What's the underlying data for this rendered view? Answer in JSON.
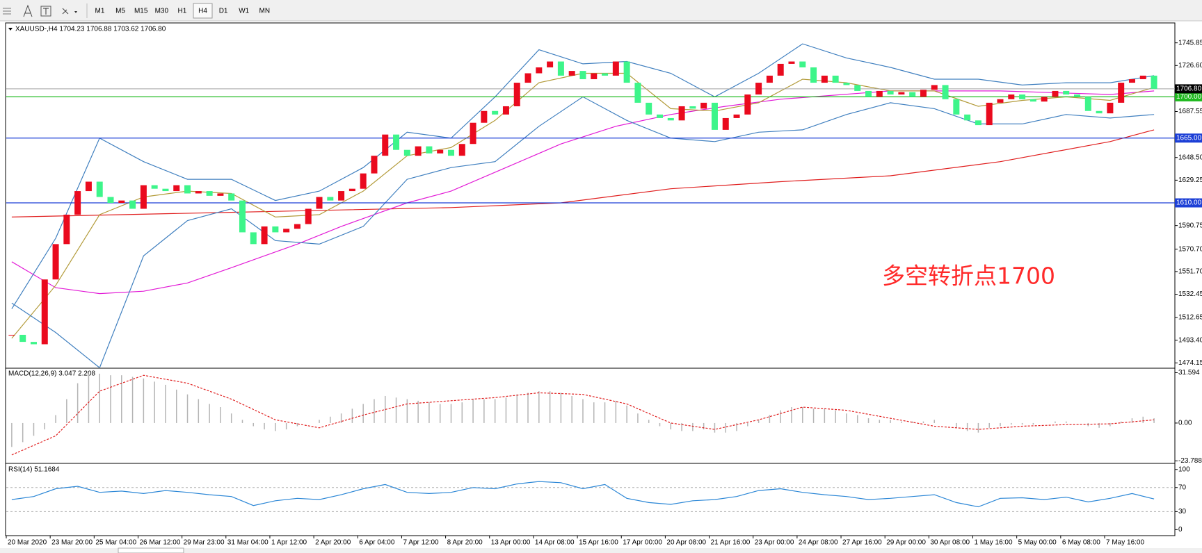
{
  "toolbar": {
    "timeframes": [
      "M1",
      "M5",
      "M15",
      "M30",
      "H1",
      "H4",
      "D1",
      "W1",
      "MN"
    ],
    "active": 5
  },
  "main": {
    "header": "XAUUSD-,H4  1704.23 1706.88 1703.62 1706.80",
    "ylim": [
      1470.25,
      1762.75
    ],
    "yticks": [
      1745.85,
      {
        "value": 1726.6,
        "label": "1726.60"
      },
      1687.55,
      {
        "value": 1648.5,
        "label": "1648.50"
      },
      1629.25,
      1590.75,
      {
        "value": 1570.7,
        "label": "1570.70"
      },
      {
        "value": 1551.7,
        "label": "1551.70"
      },
      1532.45,
      1512.65,
      {
        "value": 1493.4,
        "label": "1493.40"
      },
      1474.15
    ],
    "levels": [
      {
        "value": 1700,
        "label": "1700.00",
        "color": "#1fb91f"
      },
      {
        "value": 1665,
        "label": "1665.00",
        "color": "#1c3fd6"
      },
      {
        "value": 1610,
        "label": "1610.00",
        "color": "#1c3fd6"
      }
    ],
    "current": {
      "value": 1706.8,
      "label": "1706.80",
      "color": "#000000"
    },
    "annotation": "多空转折点1700",
    "candles": {
      "up_color": "#ea0a1e",
      "down_color": "#3df58a",
      "values": [
        1498,
        1492,
        1490,
        1545,
        1575,
        1600,
        1620,
        1628,
        1615,
        1610,
        1612,
        1605,
        1625,
        1622,
        1620,
        1625,
        1618,
        1620,
        1616,
        1618,
        1612,
        1585,
        1575,
        1590,
        1585,
        1588,
        1592,
        1605,
        1615,
        1612,
        1620,
        1622,
        1635,
        1650,
        1668,
        1655,
        1650,
        1658,
        1652,
        1655,
        1650,
        1660,
        1678,
        1688,
        1685,
        1692,
        1712,
        1720,
        1725,
        1730,
        1718,
        1722,
        1715,
        1720,
        1718,
        1730,
        1712,
        1695,
        1685,
        1682,
        1680,
        1692,
        1690,
        1695,
        1672,
        1682,
        1685,
        1702,
        1712,
        1718,
        1728,
        1730,
        1725,
        1712,
        1718,
        1712,
        1710,
        1705,
        1700,
        1705,
        1702,
        1704,
        1700,
        1706,
        1710,
        1698,
        1685,
        1680,
        1676,
        1695,
        1698,
        1702,
        1698,
        1696,
        1700,
        1705,
        1702,
        1700,
        1688,
        1686,
        1695,
        1712,
        1715,
        1718,
        1706.8
      ]
    },
    "lines": [
      {
        "color": "#e01e1e",
        "x": [
          0,
          10,
          20,
          30,
          40,
          50,
          60,
          70,
          80,
          90,
          100,
          104
        ],
        "values": [
          1598,
          1600,
          1602,
          1604,
          1606,
          1610,
          1622,
          1628,
          1633,
          1645,
          1662,
          1672
        ]
      },
      {
        "color": "#e21ad6",
        "x": [
          0,
          4,
          8,
          12,
          16,
          20,
          26,
          30,
          36,
          40,
          45,
          50,
          55,
          60,
          65,
          70,
          80,
          90,
          100,
          104
        ],
        "values": [
          1560,
          1538,
          1533,
          1535,
          1542,
          1555,
          1575,
          1590,
          1610,
          1620,
          1640,
          1660,
          1675,
          1685,
          1692,
          1698,
          1705,
          1705,
          1702,
          1705
        ]
      },
      {
        "color": "#b39b3a",
        "x": [
          0,
          4,
          8,
          12,
          16,
          20,
          24,
          28,
          32,
          36,
          40,
          44,
          48,
          52,
          56,
          60,
          64,
          68,
          72,
          76,
          80,
          84,
          88,
          92,
          96,
          100,
          104
        ],
        "values": [
          1495,
          1540,
          1600,
          1615,
          1620,
          1618,
          1598,
          1600,
          1620,
          1650,
          1657,
          1680,
          1712,
          1720,
          1720,
          1690,
          1688,
          1695,
          1715,
          1712,
          1705,
          1705,
          1692,
          1697,
          1700,
          1697,
          1708
        ]
      },
      {
        "color": "#3f7fbf",
        "x": [
          0,
          4,
          8,
          12,
          16,
          20,
          24,
          28,
          32,
          36,
          40,
          44,
          48,
          52,
          56,
          60,
          64,
          68,
          72,
          76,
          80,
          84,
          88,
          92,
          96,
          100,
          104
        ],
        "values": [
          1520,
          1580,
          1665,
          1645,
          1630,
          1630,
          1612,
          1620,
          1640,
          1670,
          1665,
          1700,
          1740,
          1728,
          1730,
          1720,
          1700,
          1720,
          1745,
          1733,
          1725,
          1715,
          1715,
          1710,
          1712,
          1712,
          1718
        ]
      },
      {
        "color": "#3f7fbf",
        "x": [
          0,
          4,
          8,
          12,
          16,
          20,
          24,
          28,
          32,
          36,
          40,
          44,
          48,
          52,
          56,
          60,
          64,
          68,
          72,
          76,
          80,
          84,
          88,
          92,
          96,
          100,
          104
        ],
        "values": [
          1525,
          1500,
          1470,
          1565,
          1595,
          1605,
          1578,
          1575,
          1590,
          1630,
          1640,
          1645,
          1675,
          1700,
          1680,
          1665,
          1662,
          1670,
          1672,
          1685,
          1695,
          1690,
          1677,
          1677,
          1685,
          1682,
          1685
        ]
      }
    ]
  },
  "macd": {
    "header": "MACD(12,26,9) 3.047 2.208",
    "ylim": [
      -24.9,
      34.0
    ],
    "yticks": [
      31.594,
      {
        "value": 0,
        "label": "0.00"
      },
      -23.788
    ],
    "histogram": {
      "color": "#b4b4b4",
      "values": [
        -15,
        -12,
        -8,
        -4,
        5,
        15,
        25,
        31,
        31,
        30,
        30,
        29,
        28,
        26,
        24,
        21,
        18,
        15,
        12,
        10,
        6,
        2,
        -2,
        -4,
        -5,
        -4,
        -2,
        0,
        2,
        4,
        6,
        9,
        12,
        15,
        17,
        16,
        15,
        14,
        13,
        12,
        12,
        13,
        15,
        15,
        15,
        16,
        18,
        19,
        20,
        20,
        19,
        17,
        15,
        13,
        13,
        14,
        11,
        6,
        2,
        -2,
        -4,
        -5,
        -5,
        -4,
        -6,
        -6,
        -5,
        -2,
        2,
        5,
        8,
        10,
        10,
        9,
        9,
        8,
        6,
        5,
        3,
        2,
        2,
        1,
        1,
        1,
        2,
        0,
        -3,
        -5,
        -6,
        -3,
        -2,
        -1,
        -1,
        -1,
        0,
        1,
        1,
        0,
        -2,
        -3,
        -2,
        1,
        3,
        4,
        3
      ]
    },
    "signal": {
      "color": "#e01e1e",
      "x": [
        0,
        4,
        8,
        12,
        16,
        20,
        24,
        28,
        32,
        36,
        40,
        44,
        48,
        52,
        56,
        60,
        64,
        68,
        72,
        76,
        80,
        84,
        88,
        92,
        96,
        100,
        104
      ],
      "values": [
        -20,
        -8,
        20,
        30,
        25,
        15,
        2,
        -3,
        5,
        12,
        14,
        16,
        19,
        18,
        12,
        0,
        -4,
        2,
        10,
        8,
        3,
        -2,
        -4,
        -2,
        -1,
        -0.5,
        2
      ]
    }
  },
  "rsi": {
    "header": "RSI(14) 51.1684",
    "ylim": [
      -10,
      109
    ],
    "yticks": [
      100,
      70,
      30,
      0
    ],
    "levels": [
      70,
      30
    ],
    "line": {
      "color": "#2a86d6",
      "x": [
        0,
        2,
        4,
        6,
        8,
        10,
        12,
        14,
        16,
        18,
        20,
        22,
        24,
        26,
        28,
        30,
        32,
        34,
        36,
        38,
        40,
        42,
        44,
        46,
        48,
        50,
        52,
        54,
        56,
        58,
        60,
        62,
        64,
        66,
        68,
        70,
        72,
        74,
        76,
        78,
        80,
        82,
        84,
        86,
        88,
        90,
        92,
        94,
        96,
        98,
        100,
        102,
        104
      ],
      "values": [
        50,
        55,
        68,
        72,
        62,
        64,
        60,
        65,
        62,
        58,
        55,
        40,
        48,
        52,
        50,
        58,
        68,
        75,
        62,
        60,
        62,
        70,
        68,
        76,
        80,
        78,
        68,
        75,
        52,
        45,
        42,
        48,
        50,
        55,
        65,
        68,
        62,
        58,
        55,
        50,
        52,
        55,
        58,
        45,
        38,
        52,
        53,
        50,
        54,
        46,
        52,
        60,
        51
      ]
    }
  },
  "time_axis": {
    "labels": [
      "20 Mar 2020",
      "23 Mar 20:00",
      "25 Mar 04:00",
      "26 Mar 12:00",
      "29 Mar 23:00",
      "31 Mar 04:00",
      "1 Apr 12:00",
      "2 Apr 20:00",
      "6 Apr 04:00",
      "7 Apr 12:00",
      "8 Apr 20:00",
      "13 Apr 00:00",
      "14 Apr 08:00",
      "15 Apr 16:00",
      "17 Apr 00:00",
      "20 Apr 08:00",
      "21 Apr 16:00",
      "23 Apr 00:00",
      "24 Apr 08:00",
      "27 Apr 16:00",
      "29 Apr 00:00",
      "30 Apr 08:00",
      "1 May 16:00",
      "5 May 00:00",
      "6 May 08:00",
      "7 May 16:00"
    ]
  }
}
